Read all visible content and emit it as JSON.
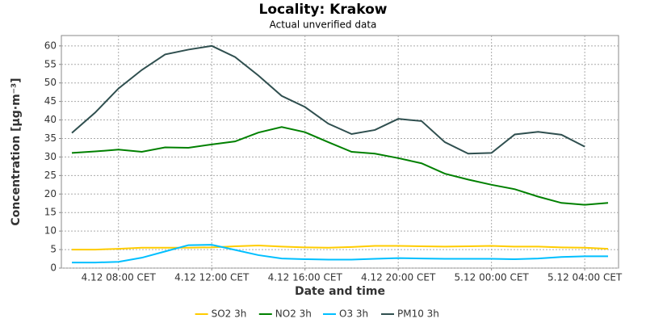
{
  "chart_data": {
    "type": "line",
    "title": "Locality: Krakow",
    "subtitle": "Actual unverified data",
    "x_label": "Date and time",
    "y_label": "Concentration [µg·m⁻³]",
    "x": [
      6,
      7,
      8,
      9,
      10,
      11,
      12,
      13,
      14,
      15,
      16,
      17,
      18,
      19,
      20,
      21,
      22,
      23,
      24,
      25,
      26,
      27,
      28,
      29
    ],
    "xlim": [
      5.55,
      29.45
    ],
    "xticks": [
      {
        "value": 8,
        "label": "4.12 08:00 CET"
      },
      {
        "value": 12,
        "label": "4.12 12:00 CET"
      },
      {
        "value": 16,
        "label": "4.12 16:00 CET"
      },
      {
        "value": 20,
        "label": "4.12 20:00 CET"
      },
      {
        "value": 24,
        "label": "5.12 00:00 CET"
      },
      {
        "value": 28,
        "label": "5.12 04:00 CET"
      }
    ],
    "ylim": [
      0,
      62.8
    ],
    "yticks": [
      0,
      5,
      10,
      15,
      20,
      25,
      30,
      35,
      40,
      45,
      50,
      55,
      60
    ],
    "grid": true,
    "legend": "bottom",
    "series": [
      {
        "name": "SO2 3h",
        "color": "#ffcc00",
        "values": [
          5,
          5,
          5.2,
          5.5,
          5.5,
          5.5,
          5.6,
          5.9,
          6.1,
          5.8,
          5.6,
          5.5,
          5.7,
          6,
          6,
          5.9,
          5.8,
          5.9,
          6,
          5.8,
          5.8,
          5.6,
          5.5,
          5.2
        ]
      },
      {
        "name": "NO2 3h",
        "color": "#008000",
        "values": [
          31.1,
          31.5,
          32,
          31.4,
          32.6,
          32.5,
          33.4,
          34.2,
          36.6,
          38.1,
          36.7,
          34,
          31.4,
          30.9,
          29.7,
          28.3,
          25.5,
          23.9,
          22.5,
          21.3,
          19.3,
          17.6,
          17.1,
          17.6
        ]
      },
      {
        "name": "O3 3h",
        "color": "#00bfff",
        "values": [
          1.5,
          1.5,
          1.7,
          2.8,
          4.5,
          6.2,
          6.3,
          4.9,
          3.5,
          2.6,
          2.4,
          2.3,
          2.3,
          2.5,
          2.7,
          2.6,
          2.5,
          2.5,
          2.5,
          2.4,
          2.6,
          3,
          3.2,
          3.2
        ]
      },
      {
        "name": "PM10 3h",
        "color": "#2f4f4f",
        "values": [
          36.5,
          42,
          48.5,
          53.5,
          57.7,
          59,
          60,
          57,
          52,
          46.5,
          43.5,
          39,
          36.2,
          37.3,
          40.3,
          39.7,
          34,
          30.9,
          31.1,
          36.1,
          36.8,
          36,
          32.8,
          null
        ]
      }
    ]
  }
}
